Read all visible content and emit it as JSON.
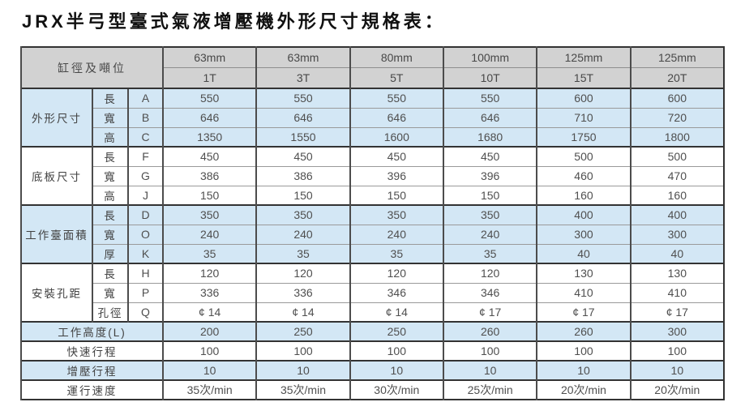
{
  "page_title": "JRX半弓型臺式氣液增壓機外形尺寸規格表：",
  "colors": {
    "header_bg": "#d2d2d2",
    "band_blue": "#d3e7f5",
    "band_white": "#ffffff",
    "border_dark": "#333333",
    "border_light": "#9a9a9a",
    "cell_text": "#4f4f4f",
    "title_text": "#111111"
  },
  "table": {
    "corner_header": "缸徑及噸位",
    "columns": [
      {
        "bore": "63mm",
        "tonnage": "1T"
      },
      {
        "bore": "63mm",
        "tonnage": "3T"
      },
      {
        "bore": "80mm",
        "tonnage": "5T"
      },
      {
        "bore": "100mm",
        "tonnage": "10T"
      },
      {
        "bore": "125mm",
        "tonnage": "15T"
      },
      {
        "bore": "125mm",
        "tonnage": "20T"
      }
    ],
    "groups": [
      {
        "label": "外形尺寸",
        "band": "blue",
        "rows": [
          {
            "dim": "長",
            "code": "A",
            "values": [
              "550",
              "550",
              "550",
              "550",
              "600",
              "600"
            ]
          },
          {
            "dim": "寬",
            "code": "B",
            "values": [
              "646",
              "646",
              "646",
              "646",
              "710",
              "720"
            ]
          },
          {
            "dim": "高",
            "code": "C",
            "values": [
              "1350",
              "1550",
              "1600",
              "1680",
              "1750",
              "1800"
            ]
          }
        ]
      },
      {
        "label": "底板尺寸",
        "band": "white",
        "rows": [
          {
            "dim": "長",
            "code": "F",
            "values": [
              "450",
              "450",
              "450",
              "450",
              "500",
              "500"
            ]
          },
          {
            "dim": "寬",
            "code": "G",
            "values": [
              "386",
              "386",
              "396",
              "396",
              "460",
              "470"
            ]
          },
          {
            "dim": "高",
            "code": "J",
            "values": [
              "150",
              "150",
              "150",
              "150",
              "160",
              "160"
            ]
          }
        ]
      },
      {
        "label": "工作臺面積",
        "band": "blue",
        "rows": [
          {
            "dim": "長",
            "code": "D",
            "values": [
              "350",
              "350",
              "350",
              "350",
              "400",
              "400"
            ]
          },
          {
            "dim": "寬",
            "code": "O",
            "values": [
              "240",
              "240",
              "240",
              "240",
              "300",
              "300"
            ]
          },
          {
            "dim": "厚",
            "code": "K",
            "values": [
              "35",
              "35",
              "35",
              "35",
              "40",
              "40"
            ]
          }
        ]
      },
      {
        "label": "安裝孔距",
        "band": "white",
        "rows": [
          {
            "dim": "長",
            "code": "H",
            "values": [
              "120",
              "120",
              "120",
              "120",
              "130",
              "130"
            ]
          },
          {
            "dim": "寬",
            "code": "P",
            "values": [
              "336",
              "336",
              "346",
              "346",
              "410",
              "410"
            ]
          },
          {
            "dim": "孔徑",
            "code": "Q",
            "values": [
              "¢ 14",
              "¢ 14",
              "¢ 14",
              "¢ 17",
              "¢ 17",
              "¢ 17"
            ]
          }
        ]
      }
    ],
    "summary_rows": [
      {
        "label": "工作高度(L)",
        "band": "blue",
        "values": [
          "200",
          "250",
          "250",
          "260",
          "260",
          "300"
        ]
      },
      {
        "label": "快速行程",
        "band": "white",
        "values": [
          "100",
          "100",
          "100",
          "100",
          "100",
          "100"
        ]
      },
      {
        "label": "增壓行程",
        "band": "blue",
        "values": [
          "10",
          "10",
          "10",
          "10",
          "10",
          "10"
        ]
      },
      {
        "label": "運行速度",
        "band": "white",
        "values": [
          "35次/min",
          "35次/min",
          "30次/min",
          "25次/min",
          "20次/min",
          "20次/min"
        ]
      }
    ]
  }
}
